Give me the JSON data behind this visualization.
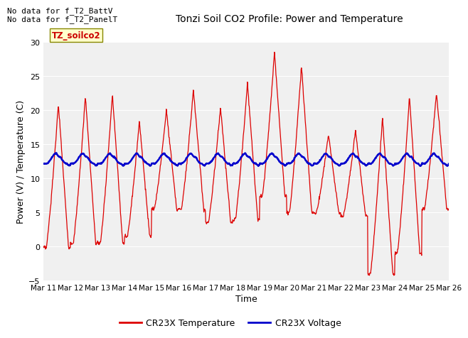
{
  "title": "Tonzi Soil CO2 Profile: Power and Temperature",
  "xlabel": "Time",
  "ylabel": "Power (V) / Temperature (C)",
  "ylim": [
    -5,
    30
  ],
  "yticks": [
    -5,
    0,
    5,
    10,
    15,
    20,
    25,
    30
  ],
  "xtick_labels": [
    "Mar 11",
    "Mar 12",
    "Mar 13",
    "Mar 14",
    "Mar 15",
    "Mar 16",
    "Mar 17",
    "Mar 18",
    "Mar 19",
    "Mar 20",
    "Mar 21",
    "Mar 22",
    "Mar 23",
    "Mar 24",
    "Mar 25",
    "Mar 26"
  ],
  "annotations_line1": "No data for f_T2_BattV",
  "annotations_line2": "No data for f_T2_PanelT",
  "legend_label_red": "CR23X Temperature",
  "legend_label_blue": "CR23X Voltage",
  "box_label": "TZ_soilco2",
  "red_color": "#dd0000",
  "blue_color": "#0000cc",
  "bg_color": "#e8e8e8",
  "plot_bg": "#f0f0f0",
  "title_fontsize": 10,
  "tick_fontsize": 8,
  "label_fontsize": 9,
  "annotation_fontsize": 8
}
